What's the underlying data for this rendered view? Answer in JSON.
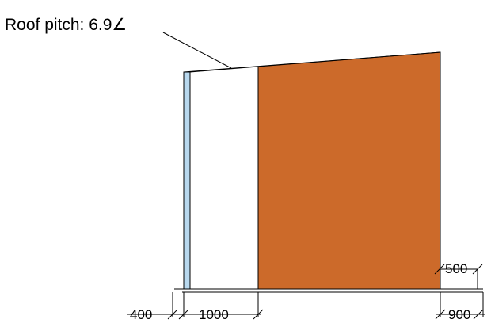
{
  "annotation": {
    "roof_pitch_label": "Roof pitch: 6.9∠"
  },
  "dimensions": {
    "left_strip": "400",
    "white_section": "1000",
    "base_height": "500",
    "right_overhang": "900"
  },
  "colors": {
    "cladding": "#CC6A2A",
    "light_strip": "#B8D8EE",
    "white_wall": "#FFFFFF",
    "line": "#000000"
  }
}
